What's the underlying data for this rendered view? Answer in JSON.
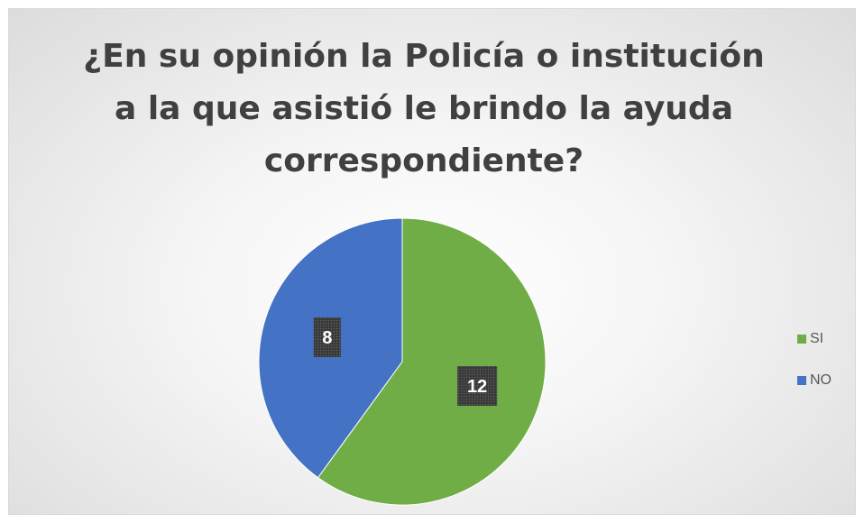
{
  "chart_data": {
    "type": "pie",
    "title": "¿En su opinión la Policía o institución a la que asistió le brindo la ayuda correspondiente?",
    "categories": [
      "SI",
      "NO"
    ],
    "values": [
      12,
      8
    ],
    "colors": [
      "#70ad47",
      "#4472c4"
    ],
    "data_labels": [
      "12",
      "8"
    ],
    "label_box_color": "#404040",
    "legend_position": "right"
  }
}
